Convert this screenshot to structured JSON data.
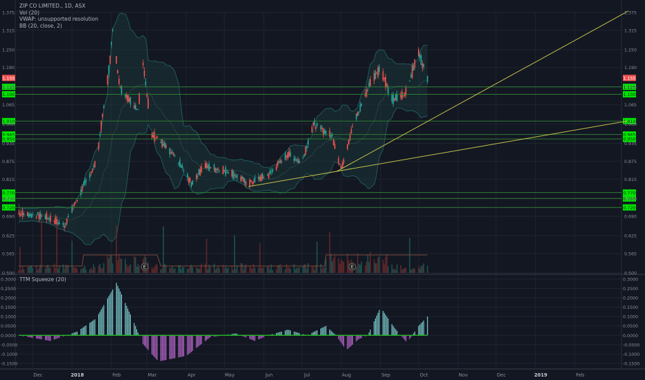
{
  "legend": {
    "symbol": "ZIP CO LIMITED., 1D, ASX",
    "volume": "Vol (20)",
    "vwap": "VWAP: unsupported resolution",
    "bb": "BB (20, close, 2)"
  },
  "indicator_title": "TTM Squeeze (20)",
  "colors": {
    "background": "#131722",
    "grid": "#1f2433",
    "up": "#26a69a",
    "down": "#ef5350",
    "level_line": "#2e7d32",
    "level_label_bg": "#00e600",
    "last_price_bg": "#ef5350",
    "trendline": "#c6c24a",
    "bb": "#1f5c5c",
    "squeeze_up": "#7fd4d4",
    "squeeze_down": "#c26bd6",
    "zero_line": "#22bb22",
    "axis_text": "#8a8f9c"
  },
  "chart_data": [
    {
      "type": "candlestick",
      "title": "ZIP CO LIMITED., 1D, ASX",
      "price_axis_ticks": [
        "1.375",
        "1.315",
        "1.250",
        "1.190",
        "1.125",
        "1.065",
        "1.000",
        "0.935",
        "0.875",
        "0.815",
        "0.750",
        "0.690",
        "0.625",
        "0.565",
        "0.500"
      ],
      "ylim": [
        0.5,
        1.375
      ],
      "time_axis_labels": [
        "Dec",
        "2018",
        "Feb",
        "Mar",
        "Apr",
        "May",
        "Jun",
        "Jul",
        "Aug",
        "Sep",
        "Oct",
        "Nov",
        "Dec",
        "2019",
        "Feb"
      ],
      "last_price": "1.155",
      "horizontal_levels": [
        "1.125",
        "1.100",
        "1.010",
        "0.965",
        "0.950",
        "0.770",
        "0.750",
        "0.720"
      ],
      "earnings_markers": [
        "E",
        "E"
      ],
      "ohlc_anchors": [
        {
          "date": "2017-11-20",
          "close": 0.7
        },
        {
          "date": "2017-12-10",
          "close": 0.69
        },
        {
          "date": "2017-12-26",
          "close": 0.66
        },
        {
          "date": "2018-01-10",
          "close": 0.79
        },
        {
          "date": "2018-01-20",
          "close": 0.87
        },
        {
          "date": "2018-01-30",
          "close": 1.18
        },
        {
          "date": "2018-02-02",
          "close": 1.31
        },
        {
          "date": "2018-02-08",
          "close": 1.12
        },
        {
          "date": "2018-02-22",
          "close": 1.05
        },
        {
          "date": "2018-02-26",
          "close": 1.2
        },
        {
          "date": "2018-03-05",
          "close": 0.97
        },
        {
          "date": "2018-03-25",
          "close": 0.88
        },
        {
          "date": "2018-04-05",
          "close": 0.8
        },
        {
          "date": "2018-04-15",
          "close": 0.86
        },
        {
          "date": "2018-05-05",
          "close": 0.84
        },
        {
          "date": "2018-05-20",
          "close": 0.8
        },
        {
          "date": "2018-06-05",
          "close": 0.83
        },
        {
          "date": "2018-06-20",
          "close": 0.9
        },
        {
          "date": "2018-07-01",
          "close": 0.87
        },
        {
          "date": "2018-07-10",
          "close": 1.0
        },
        {
          "date": "2018-07-25",
          "close": 0.96
        },
        {
          "date": "2018-08-01",
          "close": 0.85
        },
        {
          "date": "2018-08-10",
          "close": 0.99
        },
        {
          "date": "2018-08-25",
          "close": 1.15
        },
        {
          "date": "2018-09-01",
          "close": 1.19
        },
        {
          "date": "2018-09-10",
          "close": 1.08
        },
        {
          "date": "2018-09-20",
          "close": 1.1
        },
        {
          "date": "2018-10-01",
          "close": 1.24
        },
        {
          "date": "2018-10-08",
          "close": 1.155
        }
      ]
    },
    {
      "type": "histogram",
      "title": "TTM Squeeze (20)",
      "axis_ticks": [
        "0.3000",
        "0.2500",
        "0.2000",
        "0.1500",
        "0.1000",
        "0.0500",
        "0.0000",
        "-0.0500",
        "-0.1000",
        "-0.1500"
      ],
      "ylim": [
        -0.165,
        0.3
      ],
      "anchors": [
        {
          "date": "2017-11-20",
          "value": 0.0
        },
        {
          "date": "2017-12-15",
          "value": -0.03
        },
        {
          "date": "2018-01-05",
          "value": 0.02
        },
        {
          "date": "2018-01-20",
          "value": 0.09
        },
        {
          "date": "2018-02-05",
          "value": 0.28
        },
        {
          "date": "2018-02-20",
          "value": 0.05
        },
        {
          "date": "2018-02-25",
          "value": -0.04
        },
        {
          "date": "2018-03-10",
          "value": -0.14
        },
        {
          "date": "2018-04-01",
          "value": -0.11
        },
        {
          "date": "2018-04-20",
          "value": -0.01
        },
        {
          "date": "2018-05-10",
          "value": 0.01
        },
        {
          "date": "2018-05-25",
          "value": -0.03
        },
        {
          "date": "2018-06-05",
          "value": 0.0
        },
        {
          "date": "2018-06-20",
          "value": 0.03
        },
        {
          "date": "2018-07-05",
          "value": 0.0
        },
        {
          "date": "2018-07-20",
          "value": 0.05
        },
        {
          "date": "2018-07-28",
          "value": 0.0
        },
        {
          "date": "2018-08-05",
          "value": -0.08
        },
        {
          "date": "2018-08-15",
          "value": -0.02
        },
        {
          "date": "2018-08-22",
          "value": 0.0
        },
        {
          "date": "2018-09-01",
          "value": 0.15
        },
        {
          "date": "2018-09-12",
          "value": 0.04
        },
        {
          "date": "2018-09-22",
          "value": -0.04
        },
        {
          "date": "2018-10-01",
          "value": 0.05
        },
        {
          "date": "2018-10-08",
          "value": 0.1
        }
      ]
    }
  ]
}
